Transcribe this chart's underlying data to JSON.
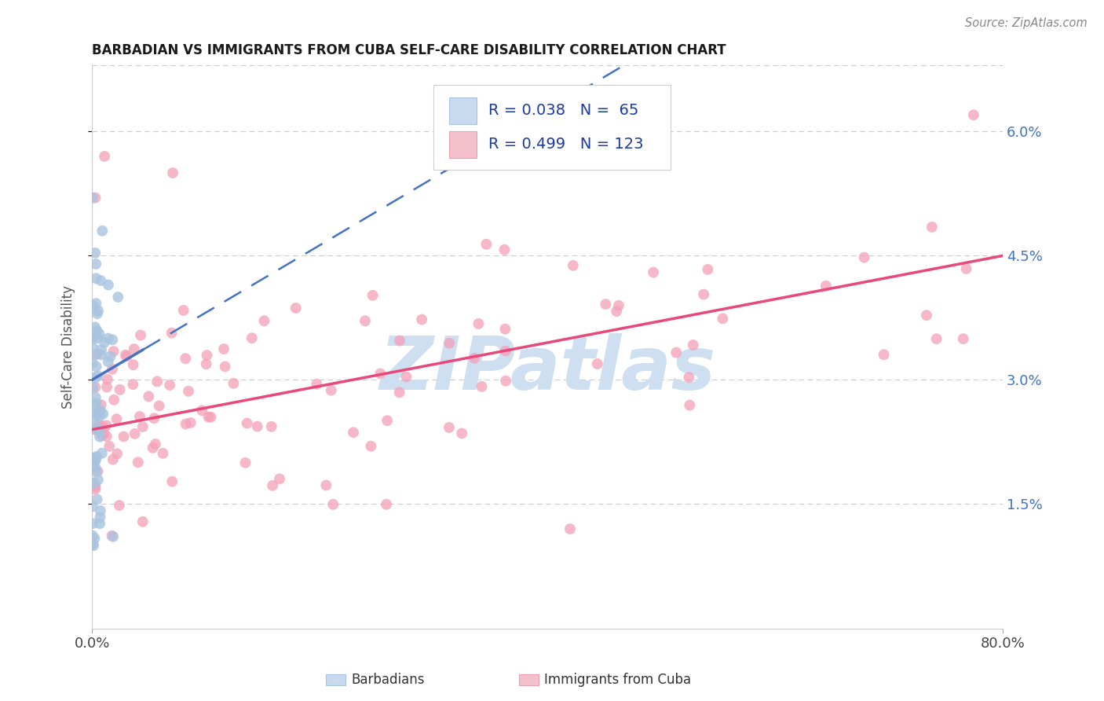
{
  "title": "BARBADIAN VS IMMIGRANTS FROM CUBA SELF-CARE DISABILITY CORRELATION CHART",
  "source": "Source: ZipAtlas.com",
  "ylabel": "Self-Care Disability",
  "barbadian_R": 0.038,
  "barbadian_N": 65,
  "cuba_R": 0.499,
  "cuba_N": 123,
  "barbadian_color": "#a8c4e0",
  "barbadian_line_color": "#4472c4",
  "cuba_color": "#f4a0b8",
  "cuba_line_color": "#e8487a",
  "watermark_text": "ZIPatlas",
  "watermark_color": "#cddff0",
  "background_color": "#ffffff",
  "grid_color": "#cccccc",
  "xlim": [
    0.0,
    0.8
  ],
  "ylim": [
    0.0,
    0.068
  ],
  "yticks": [
    0.015,
    0.03,
    0.045,
    0.06
  ],
  "ytick_labels": [
    "1.5%",
    "3.0%",
    "4.5%",
    "6.0%"
  ],
  "title_fontsize": 12,
  "tick_fontsize": 13,
  "legend_fontsize": 14
}
